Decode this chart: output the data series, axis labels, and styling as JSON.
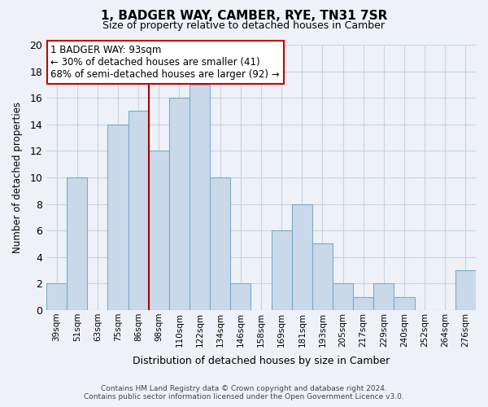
{
  "title": "1, BADGER WAY, CAMBER, RYE, TN31 7SR",
  "subtitle": "Size of property relative to detached houses in Camber",
  "xlabel": "Distribution of detached houses by size in Camber",
  "ylabel": "Number of detached properties",
  "bin_labels": [
    "39sqm",
    "51sqm",
    "63sqm",
    "75sqm",
    "86sqm",
    "98sqm",
    "110sqm",
    "122sqm",
    "134sqm",
    "146sqm",
    "158sqm",
    "169sqm",
    "181sqm",
    "193sqm",
    "205sqm",
    "217sqm",
    "229sqm",
    "240sqm",
    "252sqm",
    "264sqm",
    "276sqm"
  ],
  "bar_heights": [
    2,
    10,
    0,
    14,
    15,
    12,
    16,
    17,
    10,
    2,
    0,
    6,
    8,
    5,
    2,
    1,
    2,
    1,
    0,
    0,
    3
  ],
  "bar_color": "#c9d9ea",
  "bar_edge_color": "#7aaac8",
  "vline_x_index": 5,
  "vline_color": "#aa0000",
  "annotation_line1": "1 BADGER WAY: 93sqm",
  "annotation_line2": "← 30% of detached houses are smaller (41)",
  "annotation_line3": "68% of semi-detached houses are larger (92) →",
  "annotation_box_color": "#ffffff",
  "annotation_box_edge": "#cc0000",
  "ylim": [
    0,
    20
  ],
  "yticks": [
    0,
    2,
    4,
    6,
    8,
    10,
    12,
    14,
    16,
    18,
    20
  ],
  "grid_color": "#c8d4e0",
  "background_color": "#eef2f8",
  "footer_line1": "Contains HM Land Registry data © Crown copyright and database right 2024.",
  "footer_line2": "Contains public sector information licensed under the Open Government Licence v3.0."
}
